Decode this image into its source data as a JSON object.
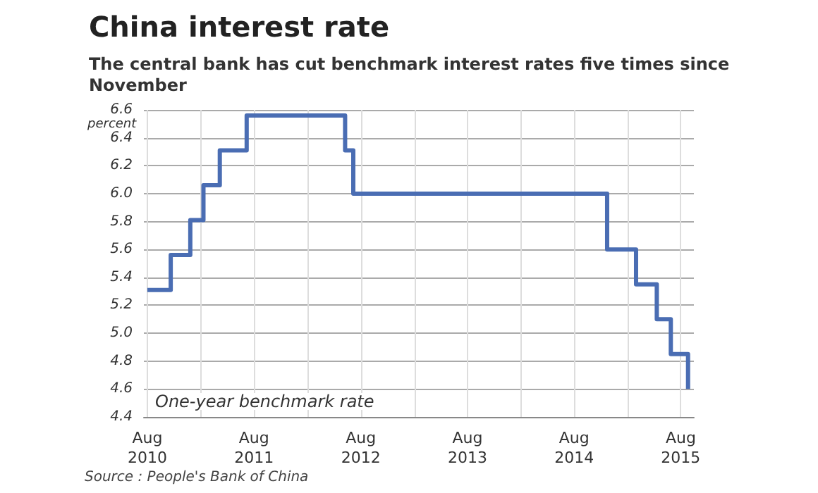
{
  "chart_data": {
    "type": "step",
    "title": "China interest rate",
    "subtitle": "The central bank has cut benchmark interest rates five times since November",
    "ylabel": "percent",
    "annotations": [
      "One-year benchmark rate",
      "Source : People's Bank of China"
    ],
    "x": [
      "2010-08-01",
      "2010-10-20",
      "2010-12-26",
      "2011-02-09",
      "2011-04-06",
      "2011-07-07",
      "2012-06-08",
      "2012-07-06",
      "2014-11-22",
      "2015-03-01",
      "2015-05-11",
      "2015-06-28",
      "2015-08-26"
    ],
    "series": [
      {
        "color": "#4a6db3",
        "values": [
          5.31,
          5.56,
          5.81,
          6.06,
          6.31,
          6.56,
          6.31,
          6.0,
          5.6,
          5.35,
          5.1,
          4.85,
          4.6
        ]
      }
    ],
    "xlim": [
      "2010-07-20",
      "2015-09-15"
    ],
    "xticks": [
      {
        "value": "2010-08-01",
        "label": "Aug\n2010"
      },
      {
        "value": "2011-02-01",
        "label": null
      },
      {
        "value": "2011-08-01",
        "label": "Aug\n2011"
      },
      {
        "value": "2012-02-01",
        "label": null
      },
      {
        "value": "2012-08-01",
        "label": "Aug\n2012"
      },
      {
        "value": "2013-02-01",
        "label": null
      },
      {
        "value": "2013-08-01",
        "label": "Aug\n2013"
      },
      {
        "value": "2014-02-01",
        "label": null
      },
      {
        "value": "2014-08-01",
        "label": "Aug\n2014"
      },
      {
        "value": "2015-02-01",
        "label": null
      },
      {
        "value": "2015-08-01",
        "label": "Aug\n2015"
      }
    ],
    "ylim": [
      4.4,
      6.6
    ],
    "yticks": [
      4.4,
      4.6,
      4.8,
      {
        "value": 5.0,
        "label": "5.0"
      },
      5.2,
      5.4,
      5.6,
      5.8,
      {
        "value": 6.0,
        "label": "6.0"
      },
      6.2,
      6.4,
      6.6
    ],
    "grid": true,
    "line_style": "solid",
    "marker": "none"
  }
}
